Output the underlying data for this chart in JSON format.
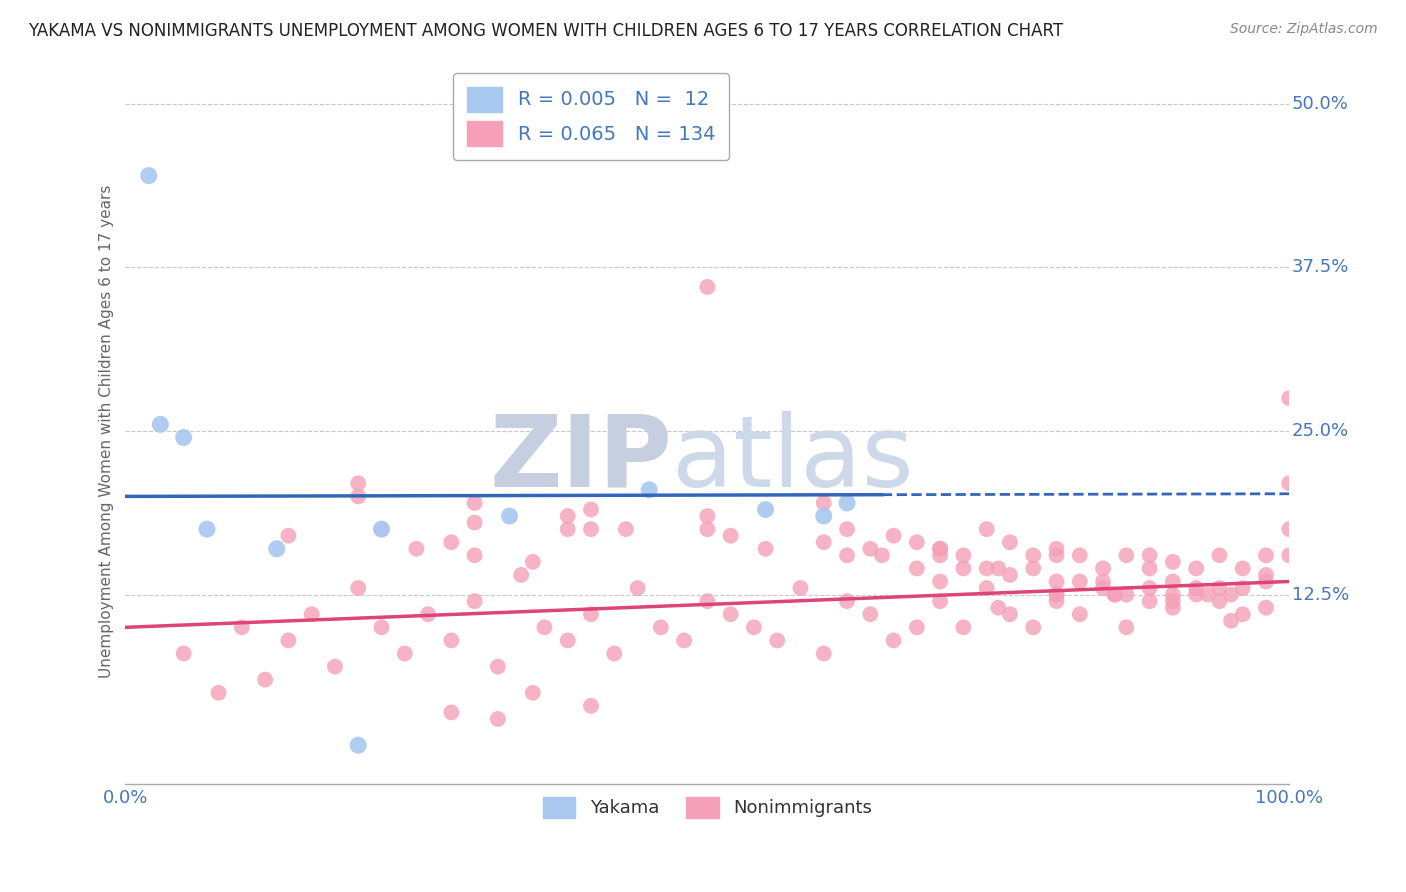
{
  "title": "YAKAMA VS NONIMMIGRANTS UNEMPLOYMENT AMONG WOMEN WITH CHILDREN AGES 6 TO 17 YEARS CORRELATION CHART",
  "source": "Source: ZipAtlas.com",
  "ylabel": "Unemployment Among Women with Children Ages 6 to 17 years",
  "xlim": [
    0.0,
    1.0
  ],
  "ylim": [
    -0.02,
    0.52
  ],
  "yticks": [
    0.0,
    0.125,
    0.25,
    0.375,
    0.5
  ],
  "ytick_labels": [
    "",
    "12.5%",
    "25.0%",
    "37.5%",
    "50.0%"
  ],
  "xticks": [
    0.0,
    1.0
  ],
  "xtick_labels": [
    "0.0%",
    "100.0%"
  ],
  "yakama_R": 0.005,
  "yakama_N": 12,
  "nonimm_R": 0.065,
  "nonimm_N": 134,
  "yakama_color": "#a8c8f0",
  "nonimm_color": "#f5a0b8",
  "trend_yakama_color": "#3366bb",
  "trend_nonimm_color": "#dd4477",
  "legend_label_yakama": "Yakama",
  "legend_label_nonimm": "Nonimmigrants",
  "background_color": "#ffffff",
  "grid_color": "#c8c8c8",
  "tick_color": "#4477bb",
  "watermark_zip_color": "#d0d8e8",
  "watermark_atlas_color": "#c8d4e4",
  "yakama_x": [
    0.02,
    0.03,
    0.05,
    0.07,
    0.13,
    0.2,
    0.22,
    0.33,
    0.45,
    0.55,
    0.6,
    0.62
  ],
  "yakama_y": [
    0.445,
    0.255,
    0.245,
    0.175,
    0.16,
    0.01,
    0.175,
    0.185,
    0.205,
    0.19,
    0.185,
    0.195
  ],
  "nonimm_x": [
    0.05,
    0.08,
    0.1,
    0.12,
    0.14,
    0.16,
    0.18,
    0.2,
    0.22,
    0.24,
    0.26,
    0.28,
    0.3,
    0.32,
    0.34,
    0.36,
    0.38,
    0.4,
    0.42,
    0.44,
    0.46,
    0.48,
    0.5,
    0.52,
    0.54,
    0.56,
    0.58,
    0.6,
    0.62,
    0.64,
    0.66,
    0.68,
    0.7,
    0.72,
    0.74,
    0.76,
    0.78,
    0.8,
    0.82,
    0.84,
    0.86,
    0.88,
    0.9,
    0.92,
    0.94,
    0.96,
    0.98,
    1.0,
    0.38,
    0.4,
    0.5,
    0.52,
    0.6,
    0.62,
    0.64,
    0.66,
    0.68,
    0.7,
    0.72,
    0.74,
    0.76,
    0.78,
    0.8,
    0.82,
    0.84,
    0.86,
    0.88,
    0.9,
    0.92,
    0.94,
    0.96,
    0.98,
    1.0,
    0.62,
    0.65,
    0.68,
    0.7,
    0.72,
    0.74,
    0.76,
    0.78,
    0.8,
    0.82,
    0.84,
    0.86,
    0.88,
    0.9,
    0.92,
    0.94,
    0.96,
    0.98,
    1.0,
    0.14,
    0.2,
    0.25,
    0.3,
    0.35,
    0.2,
    0.3,
    0.38,
    0.43,
    0.5,
    0.55,
    0.3,
    0.4,
    0.5,
    0.6,
    0.7,
    0.22,
    0.28,
    0.8,
    0.85,
    0.9,
    0.95,
    1.0,
    0.88,
    0.93,
    0.98,
    0.75,
    0.8,
    0.85,
    0.9,
    0.95,
    0.7,
    0.75,
    0.8,
    0.35,
    0.4,
    0.28,
    0.32
  ],
  "nonimm_y": [
    0.08,
    0.05,
    0.1,
    0.06,
    0.09,
    0.11,
    0.07,
    0.13,
    0.1,
    0.08,
    0.11,
    0.09,
    0.12,
    0.07,
    0.14,
    0.1,
    0.09,
    0.11,
    0.08,
    0.13,
    0.1,
    0.09,
    0.12,
    0.11,
    0.1,
    0.09,
    0.13,
    0.08,
    0.12,
    0.11,
    0.09,
    0.1,
    0.12,
    0.1,
    0.13,
    0.11,
    0.1,
    0.12,
    0.11,
    0.13,
    0.1,
    0.12,
    0.12,
    0.13,
    0.12,
    0.11,
    0.14,
    0.21,
    0.175,
    0.19,
    0.185,
    0.17,
    0.195,
    0.175,
    0.16,
    0.17,
    0.165,
    0.16,
    0.155,
    0.175,
    0.165,
    0.155,
    0.16,
    0.155,
    0.145,
    0.155,
    0.155,
    0.15,
    0.145,
    0.155,
    0.145,
    0.155,
    0.175,
    0.155,
    0.155,
    0.145,
    0.16,
    0.145,
    0.145,
    0.14,
    0.145,
    0.155,
    0.135,
    0.135,
    0.125,
    0.13,
    0.125,
    0.125,
    0.13,
    0.13,
    0.135,
    0.275,
    0.17,
    0.2,
    0.16,
    0.18,
    0.15,
    0.21,
    0.195,
    0.185,
    0.175,
    0.36,
    0.16,
    0.155,
    0.175,
    0.175,
    0.165,
    0.155,
    0.175,
    0.165,
    0.135,
    0.125,
    0.135,
    0.125,
    0.155,
    0.145,
    0.125,
    0.115,
    0.145,
    0.125,
    0.125,
    0.115,
    0.105,
    0.135,
    0.115,
    0.125,
    0.05,
    0.04,
    0.035,
    0.03
  ]
}
